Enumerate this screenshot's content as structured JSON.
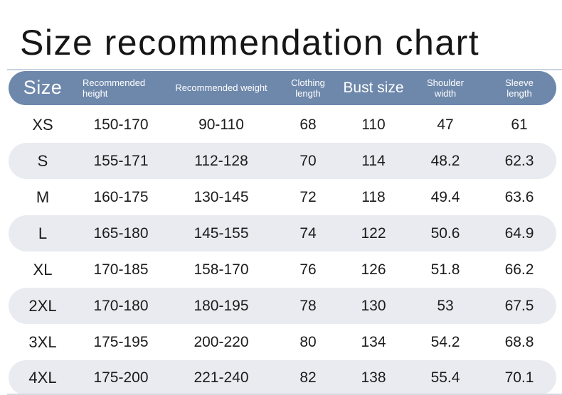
{
  "page": {
    "title": "Size recommendation chart"
  },
  "colors": {
    "header_bg": "#6e88ab",
    "header_text": "#ffffff",
    "alt_row_bg": "#e9ebf0",
    "title_text": "#161616",
    "top_rule": "#c9d3e0"
  },
  "table": {
    "columns": [
      {
        "key": "size",
        "label": "Size"
      },
      {
        "key": "recommended_height",
        "label": "Recommended height"
      },
      {
        "key": "recommended_weight",
        "label": "Recommended weight"
      },
      {
        "key": "clothing_length",
        "label": "Clothing length"
      },
      {
        "key": "bust_size",
        "label": "Bust size"
      },
      {
        "key": "shoulder_width",
        "label": "Shoulder width"
      },
      {
        "key": "sleeve_length",
        "label": "Sleeve length"
      }
    ],
    "rows": [
      [
        "XS",
        "150-170",
        "90-110",
        "68",
        "110",
        "47",
        "61"
      ],
      [
        "S",
        "155-171",
        "112-128",
        "70",
        "114",
        "48.2",
        "62.3"
      ],
      [
        "M",
        "160-175",
        "130-145",
        "72",
        "118",
        "49.4",
        "63.6"
      ],
      [
        "L",
        "165-180",
        "145-155",
        "74",
        "122",
        "50.6",
        "64.9"
      ],
      [
        "XL",
        "170-185",
        "158-170",
        "76",
        "126",
        "51.8",
        "66.2"
      ],
      [
        "2XL",
        "170-180",
        "180-195",
        "78",
        "130",
        "53",
        "67.5"
      ],
      [
        "3XL",
        "175-195",
        "200-220",
        "80",
        "134",
        "54.2",
        "68.8"
      ],
      [
        "4XL",
        "175-200",
        "221-240",
        "82",
        "138",
        "55.4",
        "70.1"
      ]
    ]
  },
  "chart_data": {
    "type": "table",
    "title": "Size recommendation chart",
    "columns": [
      "Size",
      "Recommended height",
      "Recommended weight",
      "Clothing length",
      "Bust size",
      "Shoulder width",
      "Sleeve length"
    ],
    "rows": [
      [
        "XS",
        "150-170",
        "90-110",
        "68",
        "110",
        "47",
        "61"
      ],
      [
        "S",
        "155-171",
        "112-128",
        "70",
        "114",
        "48.2",
        "62.3"
      ],
      [
        "M",
        "160-175",
        "130-145",
        "72",
        "118",
        "49.4",
        "63.6"
      ],
      [
        "L",
        "165-180",
        "145-155",
        "74",
        "122",
        "50.6",
        "64.9"
      ],
      [
        "XL",
        "170-185",
        "158-170",
        "76",
        "126",
        "51.8",
        "66.2"
      ],
      [
        "2XL",
        "170-180",
        "180-195",
        "78",
        "130",
        "53",
        "67.5"
      ],
      [
        "3XL",
        "175-195",
        "200-220",
        "80",
        "134",
        "54.2",
        "68.8"
      ],
      [
        "4XL",
        "175-200",
        "221-240",
        "82",
        "138",
        "55.4",
        "70.1"
      ]
    ],
    "layout": {
      "alternating_row_shading": true,
      "header_style": "rounded-pill",
      "grid": false
    }
  }
}
